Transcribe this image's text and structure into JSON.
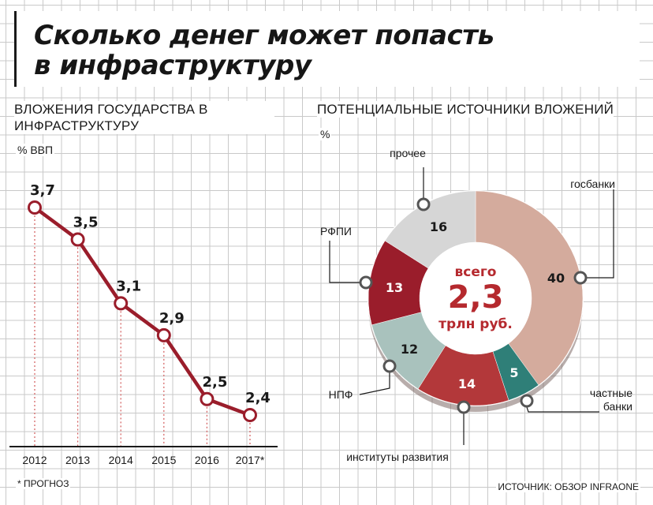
{
  "title_line1": "Сколько денег может попасть",
  "title_line2": "в инфраструктуру",
  "left_title": "ВЛОЖЕНИЯ ГОСУДАРСТВА В ИНФРАСТРУКТУРУ",
  "left_unit": "% ВВП",
  "right_title": "ПОТЕНЦИАЛЬНЫЕ ИСТОЧНИКИ ВЛОЖЕНИЙ",
  "right_unit": "%",
  "footnote": "* ПРОГНОЗ",
  "source": "ИСТОЧНИК: ОБЗОР INFRAONE",
  "colors": {
    "line": "#9a1d2b",
    "gosbanki": "#d4ab9d",
    "chastnye": "#2f7f78",
    "instituty": "#b3383a",
    "npf": "#a9c2bd",
    "rfpi": "#9a1d2b",
    "prochee": "#d6d6d6",
    "center_text": "#b5292e"
  },
  "chart_data": [
    {
      "type": "line",
      "title": "ВЛОЖЕНИЯ ГОСУДАРСТВА В ИНФРАСТРУКТУРУ",
      "ylabel": "% ВВП",
      "categories": [
        "2012",
        "2013",
        "2014",
        "2015",
        "2016",
        "2017*"
      ],
      "values": [
        3.7,
        3.5,
        3.1,
        2.9,
        2.5,
        2.4
      ],
      "value_labels": [
        "3,7",
        "3,5",
        "3,1",
        "2,9",
        "2,5",
        "2,4"
      ],
      "ylim": [
        1.4,
        3.9
      ]
    },
    {
      "type": "pie",
      "donut": true,
      "title": "ПОТЕНЦИАЛЬНЫЕ ИСТОЧНИКИ ВЛОЖЕНИЙ",
      "unit": "%",
      "center_top": "всего",
      "center_value": "2,3",
      "center_bottom": "трлн руб.",
      "slices": [
        {
          "key": "gosbanki",
          "label": "госбанки",
          "value": 40
        },
        {
          "key": "chastnye",
          "label": "частные банки",
          "value": 5
        },
        {
          "key": "instituty",
          "label": "институты развития",
          "value": 14
        },
        {
          "key": "npf",
          "label": "НПФ",
          "value": 12
        },
        {
          "key": "rfpi",
          "label": "РФПИ",
          "value": 13
        },
        {
          "key": "prochee",
          "label": "прочее",
          "value": 16
        }
      ]
    }
  ]
}
